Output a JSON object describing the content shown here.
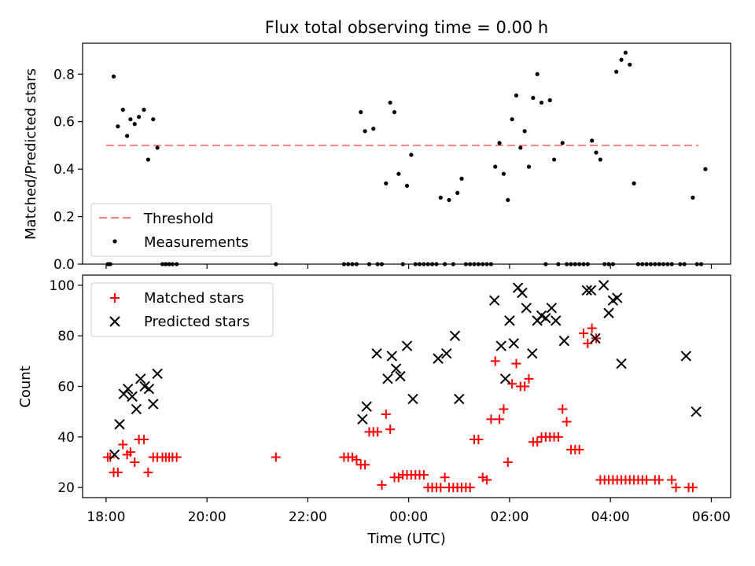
{
  "title": "Flux total observing time = 0.00 h",
  "colors": {
    "threshold": "#f08080",
    "measurements": "#000000",
    "matched": "#ff0000",
    "predicted": "#000000"
  },
  "chart_data": [
    {
      "type": "scatter",
      "title": "Flux total observing time = 0.00 h",
      "xlabel": "",
      "ylabel": "Matched/Predicted stars",
      "xlim": [
        "17:32",
        "06:23"
      ],
      "ylim": [
        0,
        0.93
      ],
      "yticks": [
        0.0,
        0.2,
        0.4,
        0.6,
        0.8
      ],
      "ytick_labels": [
        "0.0",
        "0.2",
        "0.4",
        "0.6",
        "0.8"
      ],
      "legend": {
        "placement": "lower-left",
        "entries": [
          "Threshold",
          "Measurements"
        ]
      },
      "threshold": {
        "name": "Threshold",
        "y": 0.5,
        "x": [
          "18:00",
          "05:45"
        ],
        "style": "dashed"
      },
      "series": [
        {
          "name": "Measurements",
          "points": [
            [
              "18:02",
              0
            ],
            [
              "18:05",
              0
            ],
            [
              "18:09",
              0.79
            ],
            [
              "18:14",
              0.58
            ],
            [
              "18:20",
              0.65
            ],
            [
              "18:25",
              0.54
            ],
            [
              "18:29",
              0.61
            ],
            [
              "18:34",
              0.59
            ],
            [
              "18:39",
              0.62
            ],
            [
              "18:45",
              0.65
            ],
            [
              "18:50",
              0.44
            ],
            [
              "18:56",
              0.61
            ],
            [
              "19:01",
              0.49
            ],
            [
              "19:07",
              0
            ],
            [
              "19:11",
              0
            ],
            [
              "19:15",
              0
            ],
            [
              "19:19",
              0
            ],
            [
              "19:24",
              0
            ],
            [
              "21:22",
              0
            ],
            [
              "22:43",
              0
            ],
            [
              "22:48",
              0
            ],
            [
              "22:53",
              0
            ],
            [
              "22:58",
              0
            ],
            [
              "23:03",
              0.64
            ],
            [
              "23:08",
              0.56
            ],
            [
              "23:13",
              0
            ],
            [
              "23:18",
              0.57
            ],
            [
              "23:23",
              0
            ],
            [
              "23:28",
              0
            ],
            [
              "23:33",
              0.34
            ],
            [
              "23:38",
              0.68
            ],
            [
              "23:43",
              0.64
            ],
            [
              "23:48",
              0.38
            ],
            [
              "23:53",
              0
            ],
            [
              "23:58",
              0.33
            ],
            [
              "00:03",
              0.46
            ],
            [
              "00:08",
              0
            ],
            [
              "00:13",
              0
            ],
            [
              "00:18",
              0
            ],
            [
              "00:23",
              0
            ],
            [
              "00:28",
              0
            ],
            [
              "00:33",
              0
            ],
            [
              "00:38",
              0.28
            ],
            [
              "00:43",
              0
            ],
            [
              "00:48",
              0.27
            ],
            [
              "00:53",
              0
            ],
            [
              "00:58",
              0.3
            ],
            [
              "01:03",
              0.36
            ],
            [
              "01:08",
              0
            ],
            [
              "01:13",
              0
            ],
            [
              "01:18",
              0
            ],
            [
              "01:23",
              0
            ],
            [
              "01:28",
              0
            ],
            [
              "01:33",
              0
            ],
            [
              "01:38",
              0
            ],
            [
              "01:43",
              0.41
            ],
            [
              "01:48",
              0.51
            ],
            [
              "01:53",
              0.38
            ],
            [
              "01:58",
              0.27
            ],
            [
              "02:03",
              0.61
            ],
            [
              "02:08",
              0.71
            ],
            [
              "02:13",
              0.49
            ],
            [
              "02:18",
              0.56
            ],
            [
              "02:23",
              0.41
            ],
            [
              "02:28",
              0.7
            ],
            [
              "02:33",
              0.8
            ],
            [
              "02:38",
              0.68
            ],
            [
              "02:43",
              0
            ],
            [
              "02:48",
              0.69
            ],
            [
              "02:53",
              0.44
            ],
            [
              "02:58",
              0
            ],
            [
              "03:03",
              0.51
            ],
            [
              "03:08",
              0
            ],
            [
              "03:13",
              0
            ],
            [
              "03:18",
              0
            ],
            [
              "03:23",
              0
            ],
            [
              "03:28",
              0
            ],
            [
              "03:33",
              0
            ],
            [
              "03:38",
              0.52
            ],
            [
              "03:43",
              0.47
            ],
            [
              "03:48",
              0.44
            ],
            [
              "03:53",
              0
            ],
            [
              "03:58",
              0
            ],
            [
              "04:03",
              0
            ],
            [
              "04:07",
              0.81
            ],
            [
              "04:13",
              0.86
            ],
            [
              "04:18",
              0.89
            ],
            [
              "04:23",
              0.84
            ],
            [
              "04:28",
              0.34
            ],
            [
              "04:33",
              0
            ],
            [
              "04:38",
              0
            ],
            [
              "04:43",
              0
            ],
            [
              "04:48",
              0
            ],
            [
              "04:53",
              0
            ],
            [
              "04:58",
              0
            ],
            [
              "05:03",
              0
            ],
            [
              "05:08",
              0
            ],
            [
              "05:13",
              0
            ],
            [
              "05:23",
              0
            ],
            [
              "05:28",
              0
            ],
            [
              "05:38",
              0.28
            ],
            [
              "05:43",
              0
            ],
            [
              "05:48",
              0
            ],
            [
              "05:53",
              0.4
            ]
          ]
        }
      ]
    },
    {
      "type": "scatter",
      "title": "",
      "xlabel": "Time (UTC)",
      "ylabel": "Count",
      "xlim": [
        "17:32",
        "06:23"
      ],
      "ylim": [
        16,
        104
      ],
      "xticks": [
        "18:00",
        "20:00",
        "22:00",
        "00:00",
        "02:00",
        "04:00",
        "06:00"
      ],
      "yticks": [
        20,
        40,
        60,
        80,
        100
      ],
      "ytick_labels": [
        "20",
        "40",
        "60",
        "80",
        "100"
      ],
      "legend": {
        "placement": "upper-left",
        "entries": [
          "Matched stars",
          "Predicted stars"
        ]
      },
      "series": [
        {
          "name": "Matched stars",
          "marker": "plus",
          "points": [
            [
              "18:02",
              32
            ],
            [
              "18:05",
              32
            ],
            [
              "18:09",
              26
            ],
            [
              "18:14",
              26
            ],
            [
              "18:20",
              37
            ],
            [
              "18:25",
              33
            ],
            [
              "18:29",
              34
            ],
            [
              "18:34",
              30
            ],
            [
              "18:39",
              39
            ],
            [
              "18:45",
              39
            ],
            [
              "18:50",
              26
            ],
            [
              "18:56",
              32
            ],
            [
              "19:01",
              32
            ],
            [
              "19:07",
              32
            ],
            [
              "19:11",
              32
            ],
            [
              "19:15",
              32
            ],
            [
              "19:19",
              32
            ],
            [
              "19:24",
              32
            ],
            [
              "21:22",
              32
            ],
            [
              "22:43",
              32
            ],
            [
              "22:48",
              32
            ],
            [
              "22:53",
              32
            ],
            [
              "22:58",
              31
            ],
            [
              "23:03",
              29
            ],
            [
              "23:08",
              29
            ],
            [
              "23:13",
              42
            ],
            [
              "23:18",
              42
            ],
            [
              "23:23",
              42
            ],
            [
              "23:28",
              21
            ],
            [
              "23:33",
              49
            ],
            [
              "23:38",
              43
            ],
            [
              "23:43",
              24
            ],
            [
              "23:48",
              24
            ],
            [
              "23:53",
              25
            ],
            [
              "23:58",
              25
            ],
            [
              "00:03",
              25
            ],
            [
              "00:08",
              25
            ],
            [
              "00:13",
              25
            ],
            [
              "00:18",
              25
            ],
            [
              "00:23",
              20
            ],
            [
              "00:28",
              20
            ],
            [
              "00:33",
              20
            ],
            [
              "00:38",
              20
            ],
            [
              "00:43",
              24
            ],
            [
              "00:48",
              20
            ],
            [
              "00:53",
              20
            ],
            [
              "00:58",
              20
            ],
            [
              "01:03",
              20
            ],
            [
              "01:08",
              20
            ],
            [
              "01:13",
              20
            ],
            [
              "01:18",
              39
            ],
            [
              "01:23",
              39
            ],
            [
              "01:28",
              24
            ],
            [
              "01:33",
              23
            ],
            [
              "01:38",
              47
            ],
            [
              "01:43",
              70
            ],
            [
              "01:48",
              47
            ],
            [
              "01:53",
              51
            ],
            [
              "01:58",
              30
            ],
            [
              "02:03",
              61
            ],
            [
              "02:08",
              69
            ],
            [
              "02:13",
              60
            ],
            [
              "02:18",
              60
            ],
            [
              "02:23",
              63
            ],
            [
              "02:28",
              38
            ],
            [
              "02:33",
              38
            ],
            [
              "02:38",
              40
            ],
            [
              "02:43",
              40
            ],
            [
              "02:48",
              40
            ],
            [
              "02:53",
              40
            ],
            [
              "02:58",
              40
            ],
            [
              "03:03",
              51
            ],
            [
              "03:08",
              46
            ],
            [
              "03:13",
              35
            ],
            [
              "03:18",
              35
            ],
            [
              "03:23",
              35
            ],
            [
              "03:28",
              81
            ],
            [
              "03:33",
              77
            ],
            [
              "03:38",
              83
            ],
            [
              "03:43",
              79
            ],
            [
              "03:48",
              23
            ],
            [
              "03:53",
              23
            ],
            [
              "03:58",
              23
            ],
            [
              "04:03",
              23
            ],
            [
              "04:08",
              23
            ],
            [
              "04:13",
              23
            ],
            [
              "04:18",
              23
            ],
            [
              "04:23",
              23
            ],
            [
              "04:28",
              23
            ],
            [
              "04:33",
              23
            ],
            [
              "04:38",
              23
            ],
            [
              "04:43",
              23
            ],
            [
              "04:53",
              23
            ],
            [
              "04:58",
              23
            ],
            [
              "05:13",
              23
            ],
            [
              "05:18",
              20
            ],
            [
              "05:33",
              20
            ],
            [
              "05:38",
              20
            ]
          ]
        },
        {
          "name": "Predicted stars",
          "marker": "x",
          "points": [
            [
              "18:10",
              33
            ],
            [
              "18:16",
              45
            ],
            [
              "18:21",
              57
            ],
            [
              "18:26",
              59
            ],
            [
              "18:31",
              56
            ],
            [
              "18:36",
              51
            ],
            [
              "18:41",
              63
            ],
            [
              "18:46",
              60
            ],
            [
              "18:51",
              59
            ],
            [
              "18:56",
              53
            ],
            [
              "19:01",
              65
            ],
            [
              "23:05",
              47
            ],
            [
              "23:10",
              52
            ],
            [
              "23:22",
              73
            ],
            [
              "23:35",
              63
            ],
            [
              "23:40",
              72
            ],
            [
              "23:45",
              67
            ],
            [
              "23:50",
              64
            ],
            [
              "23:58",
              76
            ],
            [
              "00:05",
              55
            ],
            [
              "00:35",
              71
            ],
            [
              "00:45",
              73
            ],
            [
              "00:55",
              80
            ],
            [
              "01:00",
              55
            ],
            [
              "01:42",
              94
            ],
            [
              "01:50",
              76
            ],
            [
              "01:55",
              63
            ],
            [
              "02:00",
              86
            ],
            [
              "02:05",
              77
            ],
            [
              "02:10",
              99
            ],
            [
              "02:15",
              97
            ],
            [
              "02:20",
              91
            ],
            [
              "02:27",
              73
            ],
            [
              "02:33",
              86
            ],
            [
              "02:38",
              88
            ],
            [
              "02:43",
              87
            ],
            [
              "02:50",
              91
            ],
            [
              "02:55",
              86
            ],
            [
              "03:05",
              78
            ],
            [
              "03:32",
              98
            ],
            [
              "03:37",
              98
            ],
            [
              "03:42",
              79
            ],
            [
              "03:52",
              100
            ],
            [
              "03:58",
              89
            ],
            [
              "04:03",
              94
            ],
            [
              "04:08",
              95
            ],
            [
              "04:13",
              69
            ],
            [
              "05:30",
              72
            ],
            [
              "05:42",
              50
            ]
          ]
        }
      ]
    }
  ]
}
